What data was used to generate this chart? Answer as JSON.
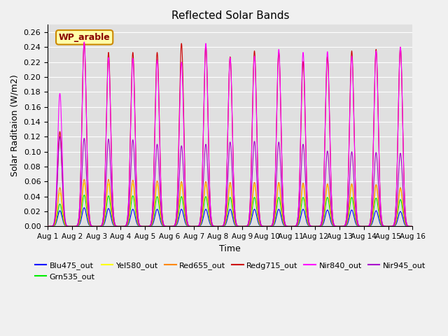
{
  "title": "Reflected Solar Bands",
  "xlabel": "Time",
  "ylabel": "Solar Raditaion (W/m2)",
  "ylim": [
    0.0,
    0.27
  ],
  "yticks": [
    0.0,
    0.02,
    0.04,
    0.06,
    0.08,
    0.1,
    0.12,
    0.14,
    0.16,
    0.18,
    0.2,
    0.22,
    0.24,
    0.26
  ],
  "x_tick_labels": [
    "Aug 1",
    "Aug 2",
    "Aug 3",
    "Aug 4",
    "Aug 5",
    "Aug 6",
    "Aug 7",
    "Aug 8",
    "Aug 9",
    "Aug 10",
    "Aug 11",
    "Aug 12",
    "Aug 13",
    "Aug 14",
    "Aug 15",
    "Aug 16"
  ],
  "series": [
    {
      "name": "Blu475_out",
      "color": "#0000ff",
      "zorder": 3
    },
    {
      "name": "Grn535_out",
      "color": "#00ee00",
      "zorder": 4
    },
    {
      "name": "Yel580_out",
      "color": "#ffff00",
      "zorder": 5
    },
    {
      "name": "Red655_out",
      "color": "#ff8800",
      "zorder": 6
    },
    {
      "name": "Redg715_out",
      "color": "#cc0000",
      "zorder": 7
    },
    {
      "name": "Nir840_out",
      "color": "#ff00ff",
      "zorder": 8
    },
    {
      "name": "Nir945_out",
      "color": "#aa00cc",
      "zorder": 9
    }
  ],
  "peak_variations": {
    "Blu475_out": [
      0.021,
      0.025,
      0.024,
      0.023,
      0.023,
      0.023,
      0.023,
      0.023,
      0.023,
      0.023,
      0.023,
      0.022,
      0.022,
      0.021,
      0.02
    ],
    "Grn535_out": [
      0.03,
      0.042,
      0.041,
      0.041,
      0.04,
      0.04,
      0.04,
      0.039,
      0.039,
      0.039,
      0.039,
      0.039,
      0.039,
      0.038,
      0.036
    ],
    "Yel580_out": [
      0.045,
      0.058,
      0.057,
      0.057,
      0.056,
      0.056,
      0.056,
      0.055,
      0.055,
      0.056,
      0.055,
      0.055,
      0.055,
      0.055,
      0.05
    ],
    "Red655_out": [
      0.052,
      0.063,
      0.063,
      0.062,
      0.061,
      0.06,
      0.06,
      0.059,
      0.059,
      0.059,
      0.058,
      0.057,
      0.057,
      0.056,
      0.052
    ],
    "Redg715_out": [
      0.127,
      0.246,
      0.233,
      0.233,
      0.233,
      0.245,
      0.241,
      0.227,
      0.235,
      0.233,
      0.221,
      0.227,
      0.235,
      0.237,
      0.24
    ],
    "Nir840_out": [
      0.178,
      0.247,
      0.226,
      0.225,
      0.223,
      0.22,
      0.245,
      0.226,
      0.228,
      0.237,
      0.233,
      0.234,
      0.228,
      0.235,
      0.24
    ],
    "Nir945_out": [
      0.12,
      0.118,
      0.117,
      0.116,
      0.11,
      0.108,
      0.11,
      0.113,
      0.114,
      0.113,
      0.11,
      0.101,
      0.1,
      0.099,
      0.098
    ]
  },
  "sigma": 0.09,
  "n_days": 15,
  "annotation_text": "WP_arable",
  "bg_color": "#e0e0e0",
  "fig_color": "#f0f0f0"
}
